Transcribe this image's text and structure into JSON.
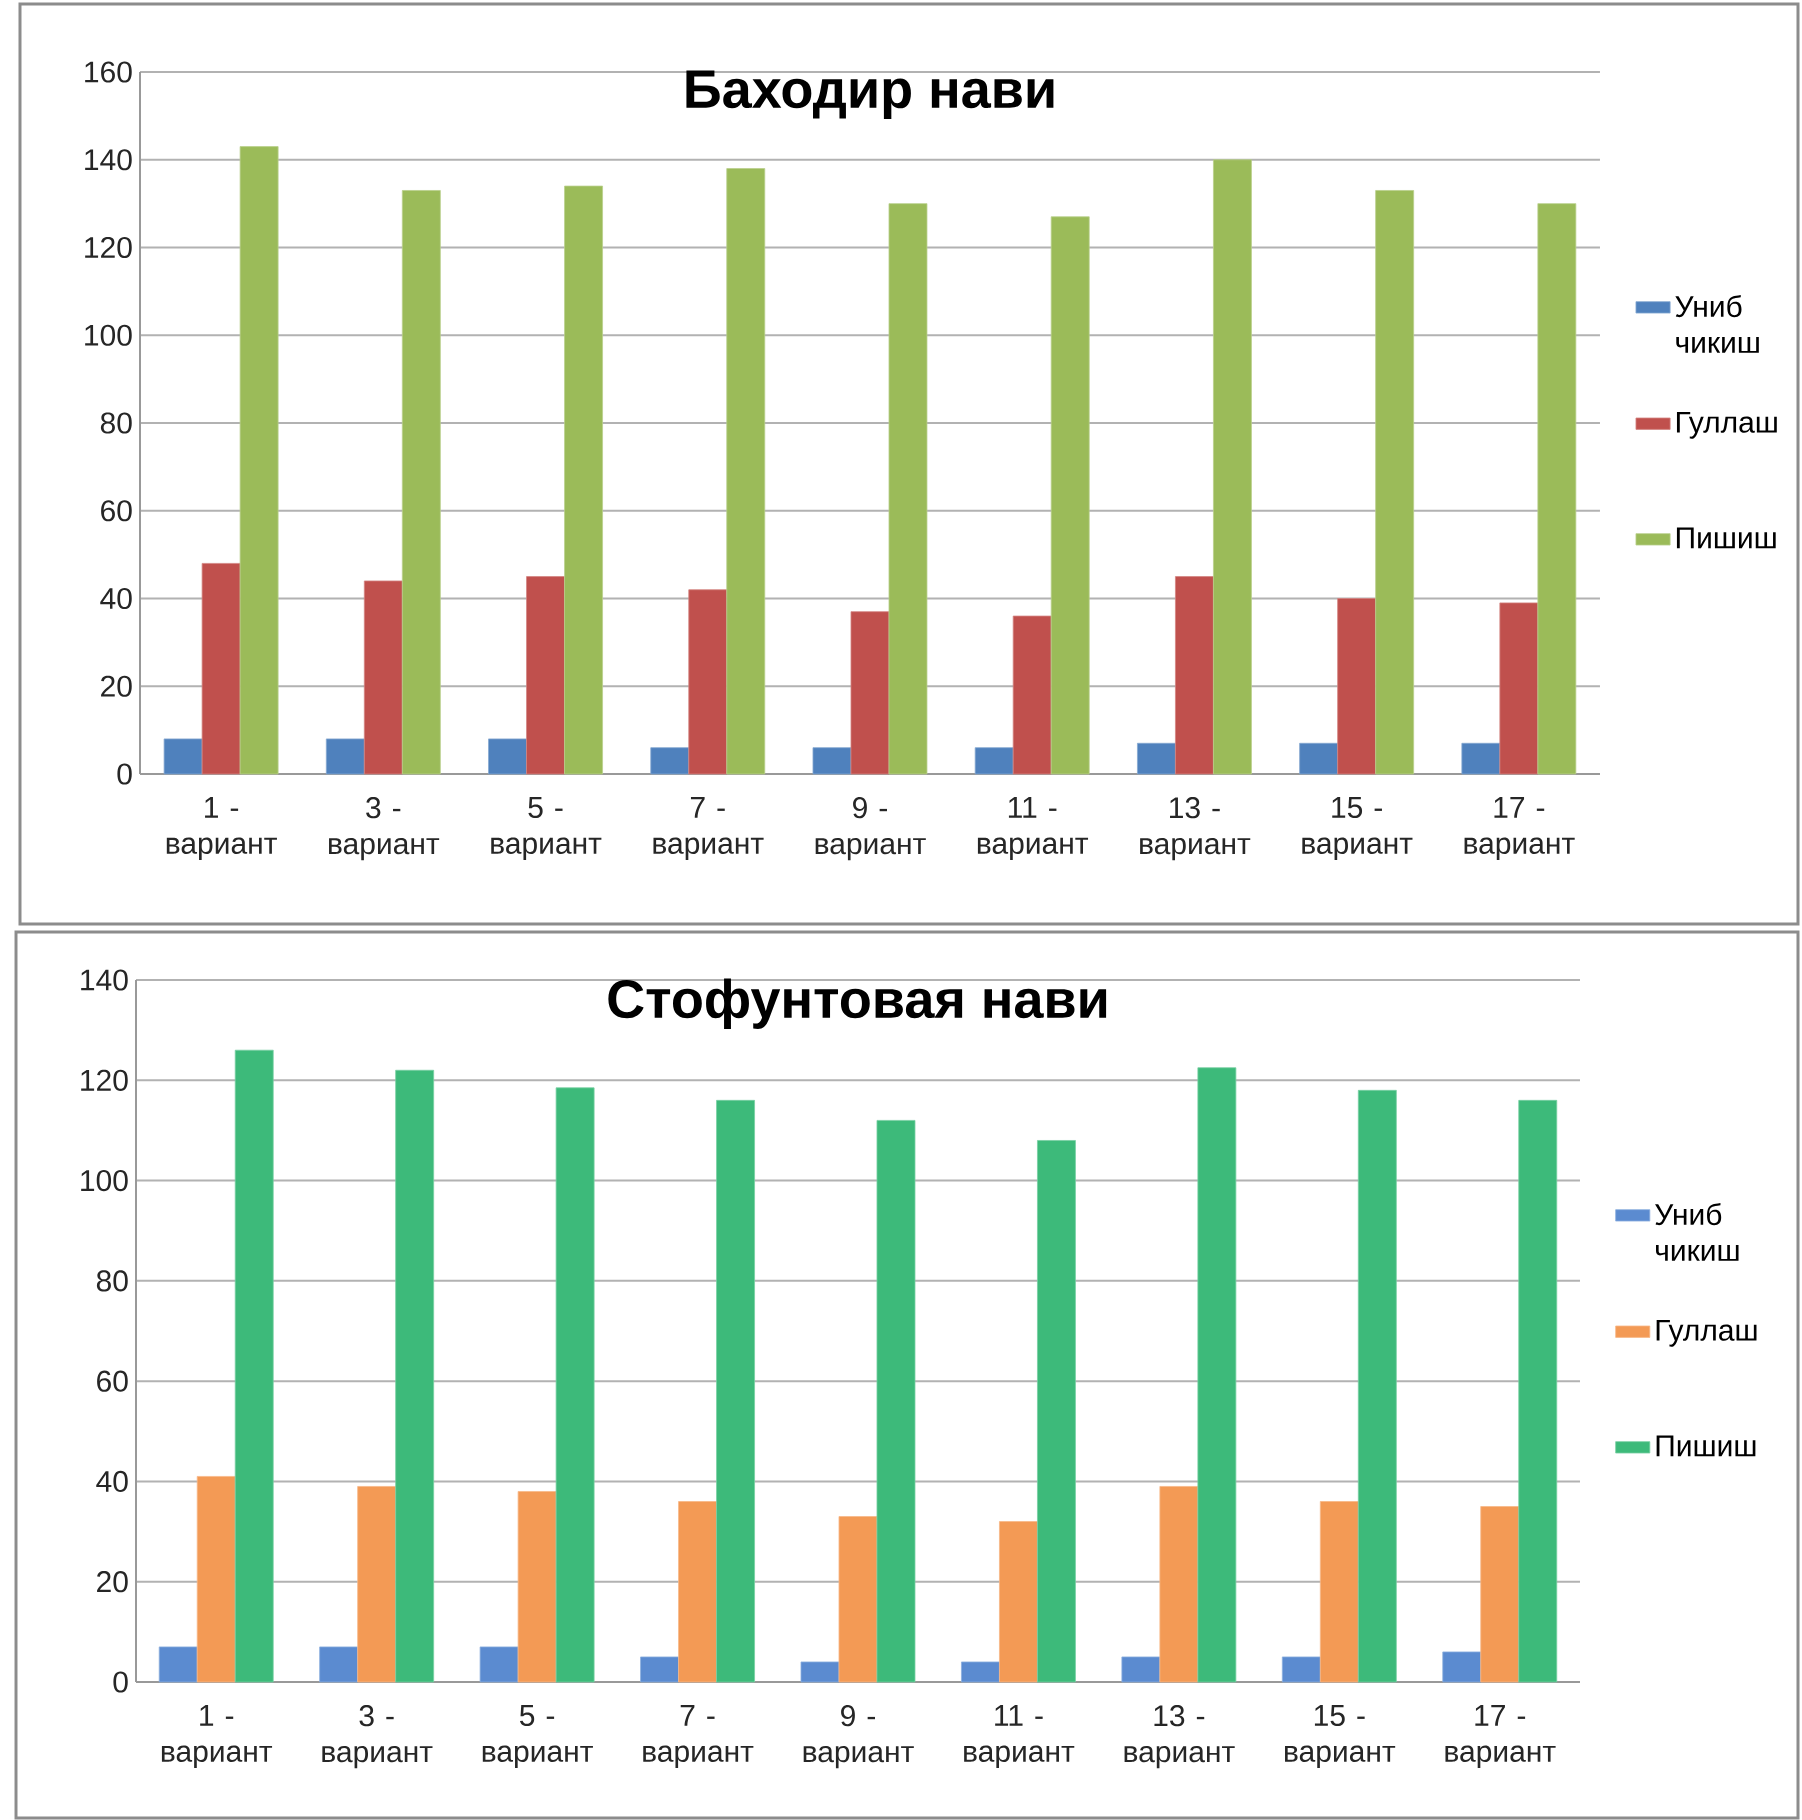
{
  "chart_data": [
    {
      "type": "bar",
      "title": "Баходир нави",
      "categories": [
        "1 - вариант",
        "3 - вариант",
        "5 - вариант",
        "7 - вариант",
        "9 - вариант",
        "11 - вариант",
        "13 - вариант",
        "15 - вариант",
        "17 - вариант"
      ],
      "series": [
        {
          "name": "Униб чикиш",
          "color": "#4f81bd",
          "values": [
            8,
            8,
            8,
            6,
            6,
            6,
            7,
            7,
            7
          ]
        },
        {
          "name": "Гуллаш",
          "color": "#c0504d",
          "values": [
            48,
            44,
            45,
            42,
            37,
            36,
            45,
            40,
            39
          ]
        },
        {
          "name": "Пишиш",
          "color": "#9bbb59",
          "values": [
            143,
            133,
            134,
            138,
            130,
            127,
            140,
            133,
            130
          ]
        }
      ],
      "ylim": [
        0,
        160
      ],
      "yticks": [
        0,
        20,
        40,
        60,
        80,
        100,
        120,
        140,
        160
      ],
      "grid": "y",
      "legend": "right"
    },
    {
      "type": "bar",
      "title": "Стофунтовая нави",
      "categories": [
        "1 - вариант",
        "3 - вариант",
        "5 - вариант",
        "7 - вариант",
        "9 - вариант",
        "11 - вариант",
        "13 - вариант",
        "15 - вариант",
        "17 - вариант"
      ],
      "series": [
        {
          "name": "Униб чикиш",
          "color": "#5b8bd0",
          "values": [
            7,
            7,
            7,
            5,
            4,
            4,
            5,
            5,
            6
          ]
        },
        {
          "name": "Гуллаш",
          "color": "#f39a55",
          "values": [
            41,
            39,
            38,
            36,
            33,
            32,
            39,
            36,
            35
          ]
        },
        {
          "name": "Пишиш",
          "color": "#3dba7a",
          "values": [
            126,
            122,
            118.5,
            116,
            112,
            108,
            122.5,
            118,
            116
          ]
        }
      ],
      "ylim": [
        0,
        140
      ],
      "yticks": [
        0,
        20,
        40,
        60,
        80,
        100,
        120,
        140
      ],
      "grid": "y",
      "legend": "right"
    }
  ]
}
